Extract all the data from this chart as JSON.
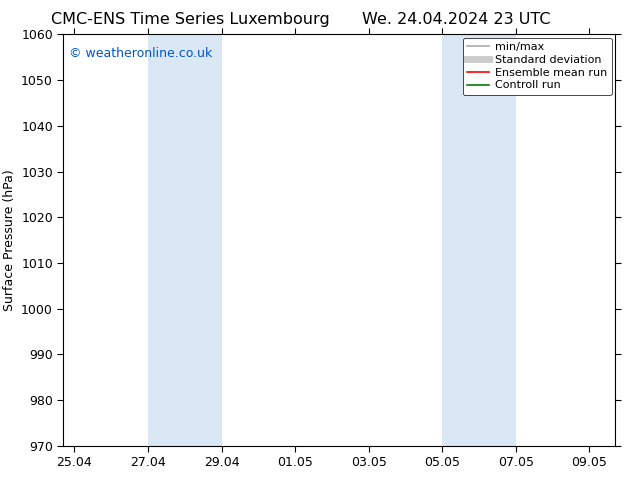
{
  "title_left": "CMC-ENS Time Series Luxembourg",
  "title_right": "We. 24.04.2024 23 UTC",
  "ylabel": "Surface Pressure (hPa)",
  "ylim": [
    970,
    1060
  ],
  "yticks": [
    970,
    980,
    990,
    1000,
    1010,
    1020,
    1030,
    1040,
    1050,
    1060
  ],
  "xtick_labels": [
    "25.04",
    "27.04",
    "29.04",
    "01.05",
    "03.05",
    "05.05",
    "07.05",
    "09.05"
  ],
  "xtick_positions": [
    0,
    2,
    4,
    6,
    8,
    10,
    12,
    14
  ],
  "xlim": [
    -0.3,
    14.7
  ],
  "shaded_bands": [
    {
      "x_start": 2,
      "x_end": 4,
      "color": "#dae8f5"
    },
    {
      "x_start": 10,
      "x_end": 12,
      "color": "#dae8f5"
    }
  ],
  "watermark_text": "© weatheronline.co.uk",
  "watermark_color": "#0055cc",
  "legend_entries": [
    {
      "label": "min/max",
      "color": "#aaaaaa",
      "lw": 1.2,
      "style": "solid"
    },
    {
      "label": "Standard deviation",
      "color": "#cccccc",
      "lw": 5,
      "style": "solid"
    },
    {
      "label": "Ensemble mean run",
      "color": "#ff0000",
      "lw": 1.2,
      "style": "solid"
    },
    {
      "label": "Controll run",
      "color": "#008000",
      "lw": 1.2,
      "style": "solid"
    }
  ],
  "bg_color": "#ffffff",
  "title_fontsize": 11.5,
  "tick_fontsize": 9,
  "ylabel_fontsize": 9,
  "watermark_fontsize": 9,
  "legend_fontsize": 8
}
